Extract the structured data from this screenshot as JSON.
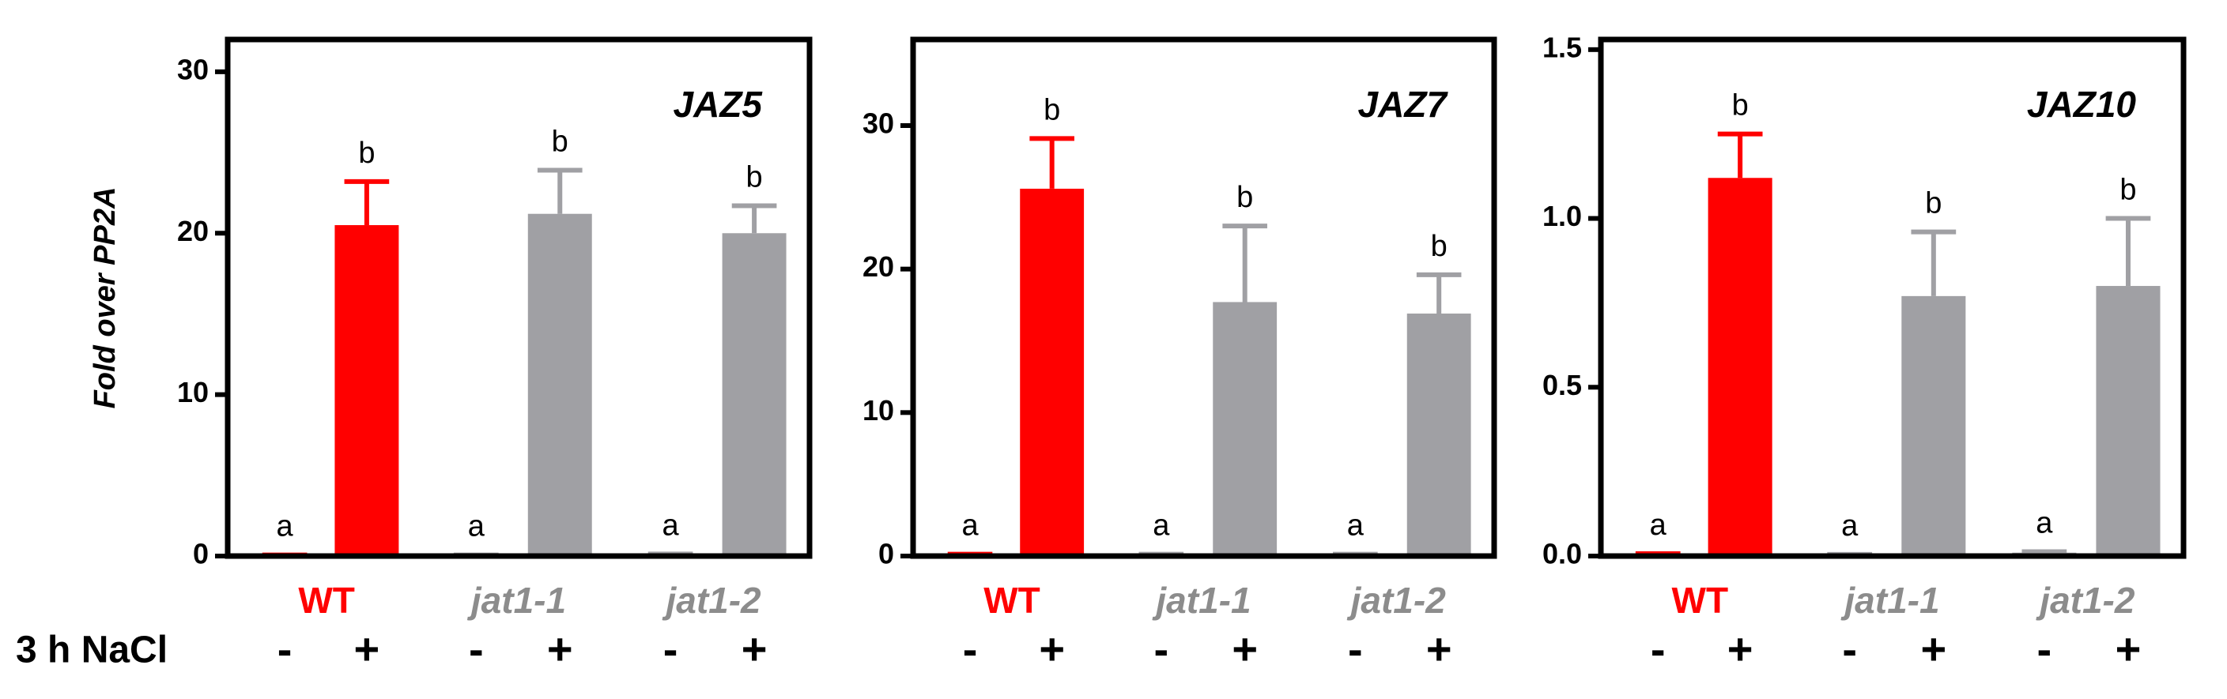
{
  "chart_data": [
    {
      "type": "bar",
      "title": "JAZ5",
      "y_label": "Fold over PP2A",
      "treatment_label": "3 h NaCl",
      "groups": [
        "WT",
        "jat1-1",
        "jat1-2"
      ],
      "group_colors": [
        "#ff0000",
        "#8c8c8c",
        "#8c8c8c"
      ],
      "categories": [
        "-",
        "+",
        "-",
        "+",
        "-",
        "+"
      ],
      "values": [
        0.05,
        20.5,
        0.05,
        21.2,
        0.1,
        20.0
      ],
      "errors": [
        0.02,
        2.7,
        0.02,
        2.7,
        0.03,
        1.7
      ],
      "letters": [
        "a",
        "b",
        "a",
        "b",
        "a",
        "b"
      ],
      "colors": [
        "#ff0000",
        "#ff0000",
        "#a0a0a4",
        "#a0a0a4",
        "#a0a0a4",
        "#a0a0a4"
      ],
      "ylim": [
        0,
        32
      ],
      "yticks": [
        0,
        10,
        20,
        30
      ]
    },
    {
      "type": "bar",
      "title": "JAZ7",
      "groups": [
        "WT",
        "jat1-1",
        "jat1-2"
      ],
      "group_colors": [
        "#ff0000",
        "#8c8c8c",
        "#8c8c8c"
      ],
      "categories": [
        "-",
        "+",
        "-",
        "+",
        "-",
        "+"
      ],
      "values": [
        0.1,
        25.6,
        0.1,
        17.7,
        0.1,
        16.9
      ],
      "errors": [
        0.03,
        3.5,
        0.03,
        5.3,
        0.03,
        2.7
      ],
      "letters": [
        "a",
        "b",
        "a",
        "b",
        "a",
        "b"
      ],
      "colors": [
        "#ff0000",
        "#ff0000",
        "#a0a0a4",
        "#a0a0a4",
        "#a0a0a4",
        "#a0a0a4"
      ],
      "ylim": [
        0,
        36
      ],
      "yticks": [
        0,
        10,
        20,
        30
      ]
    },
    {
      "type": "bar",
      "title": "JAZ10",
      "groups": [
        "WT",
        "jat1-1",
        "jat1-2"
      ],
      "group_colors": [
        "#ff0000",
        "#8c8c8c",
        "#8c8c8c"
      ],
      "categories": [
        "-",
        "+",
        "-",
        "+",
        "-",
        "+"
      ],
      "values": [
        0.005,
        1.12,
        0.003,
        0.77,
        0.01,
        0.8
      ],
      "errors": [
        0.002,
        0.13,
        0.002,
        0.19,
        0.003,
        0.2
      ],
      "letters": [
        "a",
        "b",
        "a",
        "b",
        "a",
        "b"
      ],
      "colors": [
        "#ff0000",
        "#ff0000",
        "#a0a0a4",
        "#a0a0a4",
        "#a0a0a4",
        "#a0a0a4"
      ],
      "ylim": [
        0,
        1.53
      ],
      "yticks": [
        {
          "value": 0,
          "label": "0.0"
        },
        {
          "value": 0.5,
          "label": "0.5"
        },
        {
          "value": 1,
          "label": "1.0"
        },
        {
          "value": 1.5,
          "label": "1.5"
        }
      ]
    }
  ]
}
